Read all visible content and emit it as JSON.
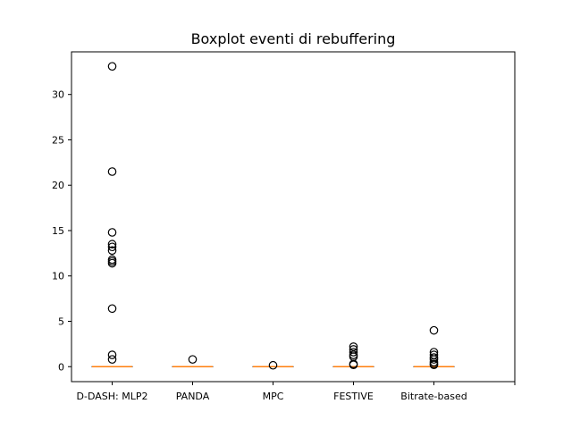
{
  "chart_data": {
    "type": "box",
    "title": "Boxplot eventi di rebuffering",
    "xlabel": "",
    "ylabel": "",
    "categories": [
      "D-DASH: MLP2",
      "PANDA",
      "MPC",
      "FESTIVE",
      "Bitrate-based"
    ],
    "ylim": [
      -1.65,
      34.7
    ],
    "y_ticks": [
      0,
      5,
      10,
      15,
      20,
      25,
      30
    ],
    "grid": false,
    "boxes": [
      {
        "category": "D-DASH: MLP2",
        "q1": 0,
        "median": 0,
        "q3": 0,
        "whisker_low": 0,
        "whisker_high": 0,
        "outliers": [
          33.1,
          21.5,
          14.8,
          13.5,
          13.2,
          12.8,
          11.8,
          11.6,
          11.4,
          6.4,
          1.3,
          0.8
        ]
      },
      {
        "category": "PANDA",
        "q1": 0,
        "median": 0,
        "q3": 0,
        "whisker_low": 0,
        "whisker_high": 0,
        "outliers": [
          0.8
        ]
      },
      {
        "category": "MPC",
        "q1": 0,
        "median": 0,
        "q3": 0,
        "whisker_low": 0,
        "whisker_high": 0,
        "outliers": [
          0.15
        ]
      },
      {
        "category": "FESTIVE",
        "q1": 0,
        "median": 0,
        "q3": 0,
        "whisker_low": 0,
        "whisker_high": 0,
        "outliers": [
          2.2,
          1.9,
          1.6,
          1.3,
          1.1,
          0.3,
          0.2
        ]
      },
      {
        "category": "Bitrate-based",
        "q1": 0,
        "median": 0,
        "q3": 0,
        "whisker_low": 0,
        "whisker_high": 0,
        "outliers": [
          4.0,
          1.6,
          1.3,
          1.0,
          0.8,
          0.5,
          0.3,
          0.2
        ]
      }
    ],
    "colors": {
      "median": "#ff7f0e",
      "box": "#000000",
      "outlier": "#000000",
      "background": "#ffffff"
    }
  }
}
